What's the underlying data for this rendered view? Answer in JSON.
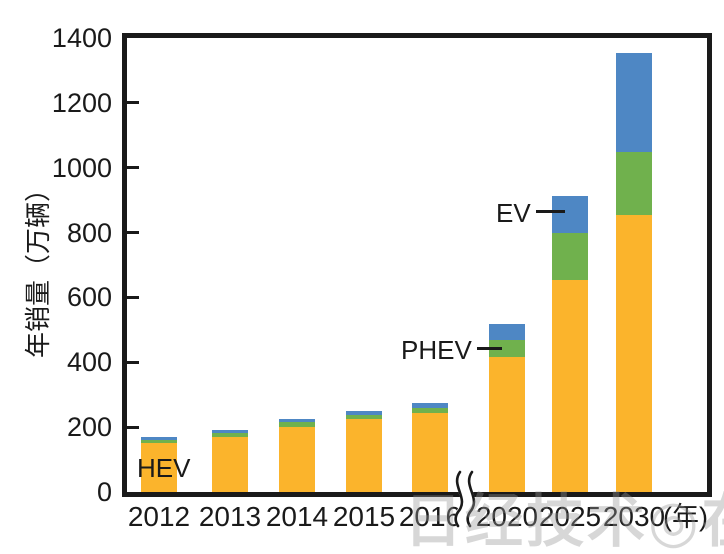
{
  "chart_data": {
    "type": "bar",
    "stacked": true,
    "title": "",
    "ylabel": "年销量（万辆）",
    "x_unit_label": "(年)",
    "categories": [
      "2012",
      "2013",
      "2014",
      "2015",
      "2016",
      "2020",
      "2025",
      "2030"
    ],
    "series": [
      {
        "name": "HEV",
        "color": "#FBB42C",
        "values": [
          150,
          170,
          200,
          225,
          245,
          415,
          655,
          855
        ]
      },
      {
        "name": "PHEV",
        "color": "#70B14D",
        "values": [
          10,
          12,
          15,
          13,
          15,
          52,
          145,
          195
        ]
      },
      {
        "name": "EV",
        "color": "#4E87C4",
        "values": [
          10,
          10,
          10,
          12,
          15,
          50,
          115,
          305
        ]
      }
    ],
    "totals": [
      170,
      192,
      225,
      250,
      275,
      517,
      915,
      1355
    ],
    "ylim": [
      0,
      1400
    ],
    "yticks": [
      0,
      200,
      400,
      600,
      800,
      1000,
      1200,
      1400
    ],
    "grid": false,
    "legend_position": "none",
    "axis_break_between": [
      "2016",
      "2020"
    ],
    "annotations": [
      {
        "text": "HEV",
        "target_series": "HEV",
        "target_category": "2012"
      },
      {
        "text": "PHEV",
        "target_series": "PHEV",
        "target_category": "2020"
      },
      {
        "text": "EV",
        "target_series": "EV",
        "target_category": "2025"
      }
    ]
  },
  "colors": {
    "axis": "#1a1a1a",
    "hev_orange": "#FBB42C",
    "phev_green": "#70B14D",
    "ev_blue": "#4E87C4"
  },
  "watermark": "日经技术◎在线!"
}
